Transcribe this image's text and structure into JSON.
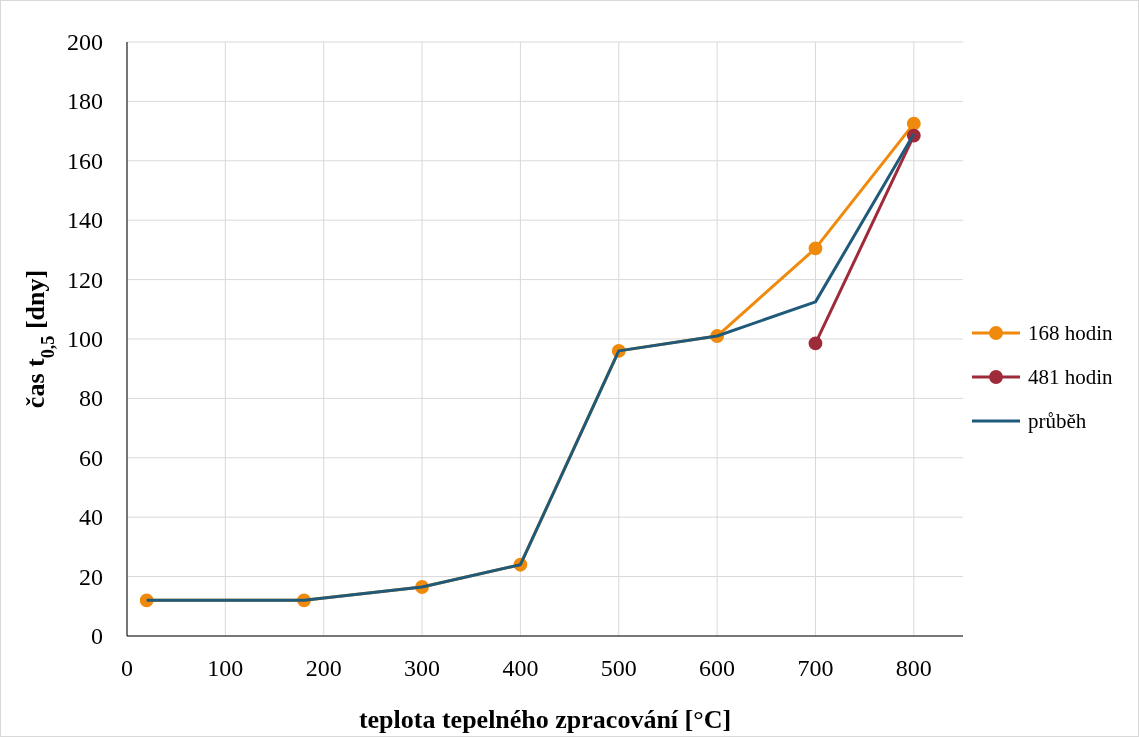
{
  "chart_data": {
    "type": "line",
    "xlabel": "teplota  tepelného zpracování  [°C]",
    "ylabel": "čas t$_{0,5}$  [dny]",
    "xlim": [
      0,
      850
    ],
    "xticks": [
      0,
      100,
      200,
      300,
      400,
      500,
      600,
      700,
      800
    ],
    "ylim": [
      0,
      200
    ],
    "yticks": [
      0,
      20,
      40,
      60,
      80,
      100,
      120,
      140,
      160,
      180,
      200
    ],
    "grid": true,
    "legend": "right",
    "series": [
      {
        "name": "168 hodin",
        "color": "#f08a0c",
        "marker": "circle",
        "x": [
          20,
          180,
          300,
          400,
          500,
          600,
          700,
          800
        ],
        "values": [
          12,
          12,
          16.5,
          24,
          96,
          101,
          130.5,
          172.5
        ]
      },
      {
        "name": "481 hodin",
        "color": "#9e2a3a",
        "marker": "circle",
        "x": [
          700,
          800
        ],
        "values": [
          98.5,
          168.5
        ]
      },
      {
        "name": "průběh",
        "color": "#1f5a7a",
        "marker": "none",
        "x": [
          20,
          180,
          300,
          400,
          500,
          600,
          700,
          800
        ],
        "values": [
          12,
          12,
          16.5,
          24,
          96,
          101,
          112.5,
          169
        ]
      }
    ]
  }
}
